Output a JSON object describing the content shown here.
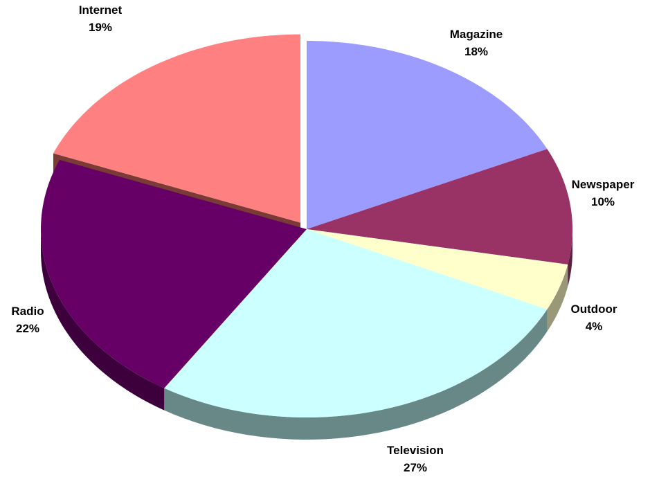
{
  "chart_data": {
    "type": "pie",
    "title": "",
    "slices": [
      {
        "name": "Magazine",
        "label": "Magazine",
        "value": 18,
        "value_label": "18%",
        "color": "#9c9cff",
        "side_color": "#5e5e99"
      },
      {
        "name": "Newspaper",
        "label": "Newspaper",
        "value": 10,
        "value_label": "10%",
        "color": "#993366",
        "side_color": "#5c1f3d"
      },
      {
        "name": "Outdoor",
        "label": "Outdoor",
        "value": 4,
        "value_label": "4%",
        "color": "#ffffcc",
        "side_color": "#99997a"
      },
      {
        "name": "Television",
        "label": "Television",
        "value": 27,
        "value_label": "27%",
        "color": "#ccffff",
        "side_color": "#688887"
      },
      {
        "name": "Radio",
        "label": "Radio",
        "value": 22,
        "value_label": "22%",
        "color": "#660066",
        "side_color": "#3d003d"
      },
      {
        "name": "Internet",
        "label": "Internet",
        "value": 19,
        "value_label": "19%",
        "color": "#ff8080",
        "side_color": "#7a3a35",
        "exploded": true
      }
    ],
    "start": "top",
    "direction": "clockwise",
    "style": "3d-tilted",
    "legend": "none"
  }
}
